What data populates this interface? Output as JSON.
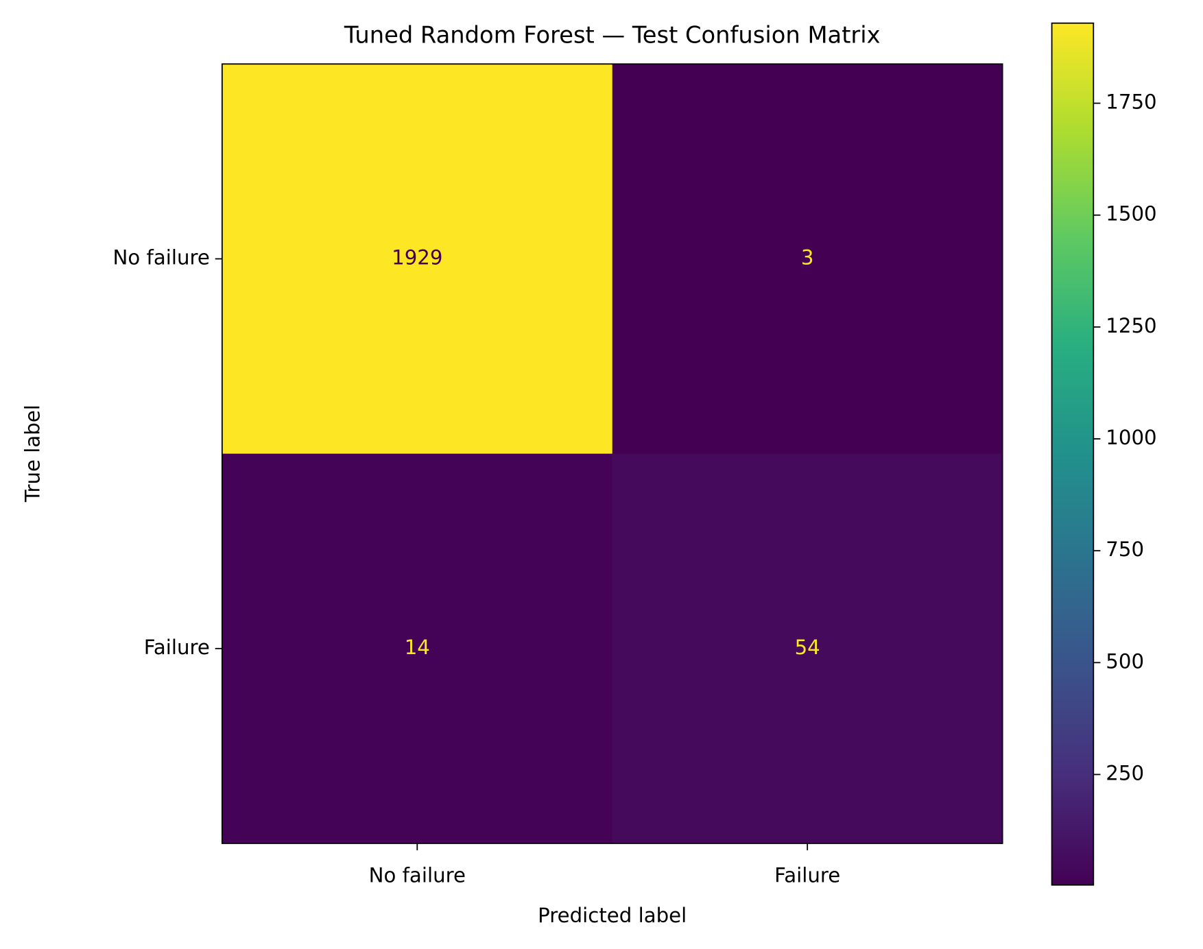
{
  "chart_data": {
    "type": "heatmap",
    "title": "Tuned Random Forest — Test Confusion Matrix",
    "x_label": "Predicted label",
    "y_label": "True label",
    "x_categories": [
      "No failure",
      "Failure"
    ],
    "y_categories": [
      "No failure",
      "Failure"
    ],
    "values": [
      [
        1929,
        3
      ],
      [
        14,
        54
      ]
    ],
    "colormap": "viridis",
    "colorbar_lim": [
      3,
      1929
    ],
    "colorbar_ticks": [
      250,
      500,
      750,
      1000,
      1250,
      1500,
      1750
    ]
  }
}
